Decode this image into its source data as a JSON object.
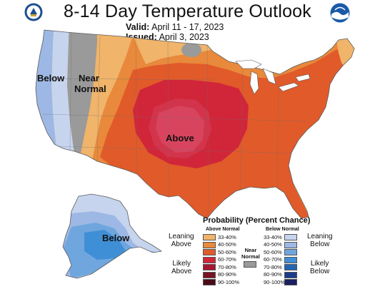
{
  "header": {
    "title": "8-14 Day Temperature Outlook",
    "valid_label": "Valid:",
    "valid_value": "April 11 - 17, 2023",
    "issued_label": "Issued:",
    "issued_value": "April 3, 2023"
  },
  "logos": {
    "left": "commerce-seal-icon",
    "right": "noaa-logo-icon"
  },
  "map_labels": {
    "below": "Below",
    "near_normal_1": "Near",
    "near_normal_2": "Normal",
    "above": "Above",
    "alaska_below": "Below"
  },
  "legend": {
    "title": "Probability (Percent Chance)",
    "above_header": "Above Normal",
    "below_header": "Below Normal",
    "near_normal_1": "Near",
    "near_normal_2": "Normal",
    "leaning_above_1": "Leaning",
    "leaning_above_2": "Above",
    "likely_above_1": "Likely",
    "likely_above_2": "Above",
    "leaning_below_1": "Leaning",
    "leaning_below_2": "Below",
    "likely_below_1": "Likely",
    "likely_below_2": "Below",
    "above": [
      {
        "label": "33-40%",
        "color": "#F0B46A"
      },
      {
        "label": "40-50%",
        "color": "#E8893B"
      },
      {
        "label": "50-60%",
        "color": "#E15A2A"
      },
      {
        "label": "60-70%",
        "color": "#D1263A"
      },
      {
        "label": "70-80%",
        "color": "#A5172E"
      },
      {
        "label": "80-90%",
        "color": "#7A1224"
      },
      {
        "label": "90-100%",
        "color": "#4A0A16"
      }
    ],
    "near_color": "#9A9A9A",
    "below": [
      {
        "label": "33-40%",
        "color": "#C6D4EE"
      },
      {
        "label": "40-50%",
        "color": "#9DB8E4"
      },
      {
        "label": "50-60%",
        "color": "#6FA6DE"
      },
      {
        "label": "60-70%",
        "color": "#3F8FD6"
      },
      {
        "label": "70-80%",
        "color": "#2166B0"
      },
      {
        "label": "80-90%",
        "color": "#1C3C8C"
      },
      {
        "label": "90-100%",
        "color": "#1A1F5E"
      }
    ]
  }
}
